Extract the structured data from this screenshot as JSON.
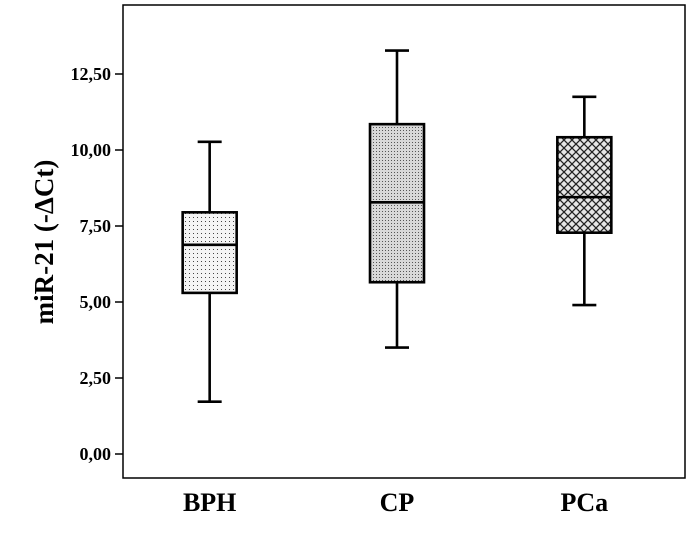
{
  "chart_data": {
    "type": "box",
    "title": "",
    "xlabel": "",
    "ylabel": "miR-21 (-ΔCt)",
    "ylim": [
      -0.3,
      14.6
    ],
    "yticks": [
      0,
      2.5,
      5,
      7.5,
      10,
      12.5
    ],
    "ytick_labels": [
      "0,00",
      "2,50",
      "5,00",
      "7,50",
      "10,00",
      "12,50"
    ],
    "categories": [
      "BPH",
      "CP",
      "PCa"
    ],
    "boxes": [
      {
        "label": "BPH",
        "min": 1.72,
        "q1": 5.3,
        "median": 6.88,
        "q3": 7.95,
        "max": 10.27,
        "fill_pattern": "dots"
      },
      {
        "label": "CP",
        "min": 3.5,
        "q1": 5.65,
        "median": 8.28,
        "q3": 10.85,
        "max": 13.27,
        "fill_pattern": "fine-dots"
      },
      {
        "label": "PCa",
        "min": 4.9,
        "q1": 7.28,
        "median": 8.45,
        "q3": 10.42,
        "max": 11.75,
        "fill_pattern": "crosshatch"
      }
    ],
    "grid": false,
    "legend": "none"
  }
}
